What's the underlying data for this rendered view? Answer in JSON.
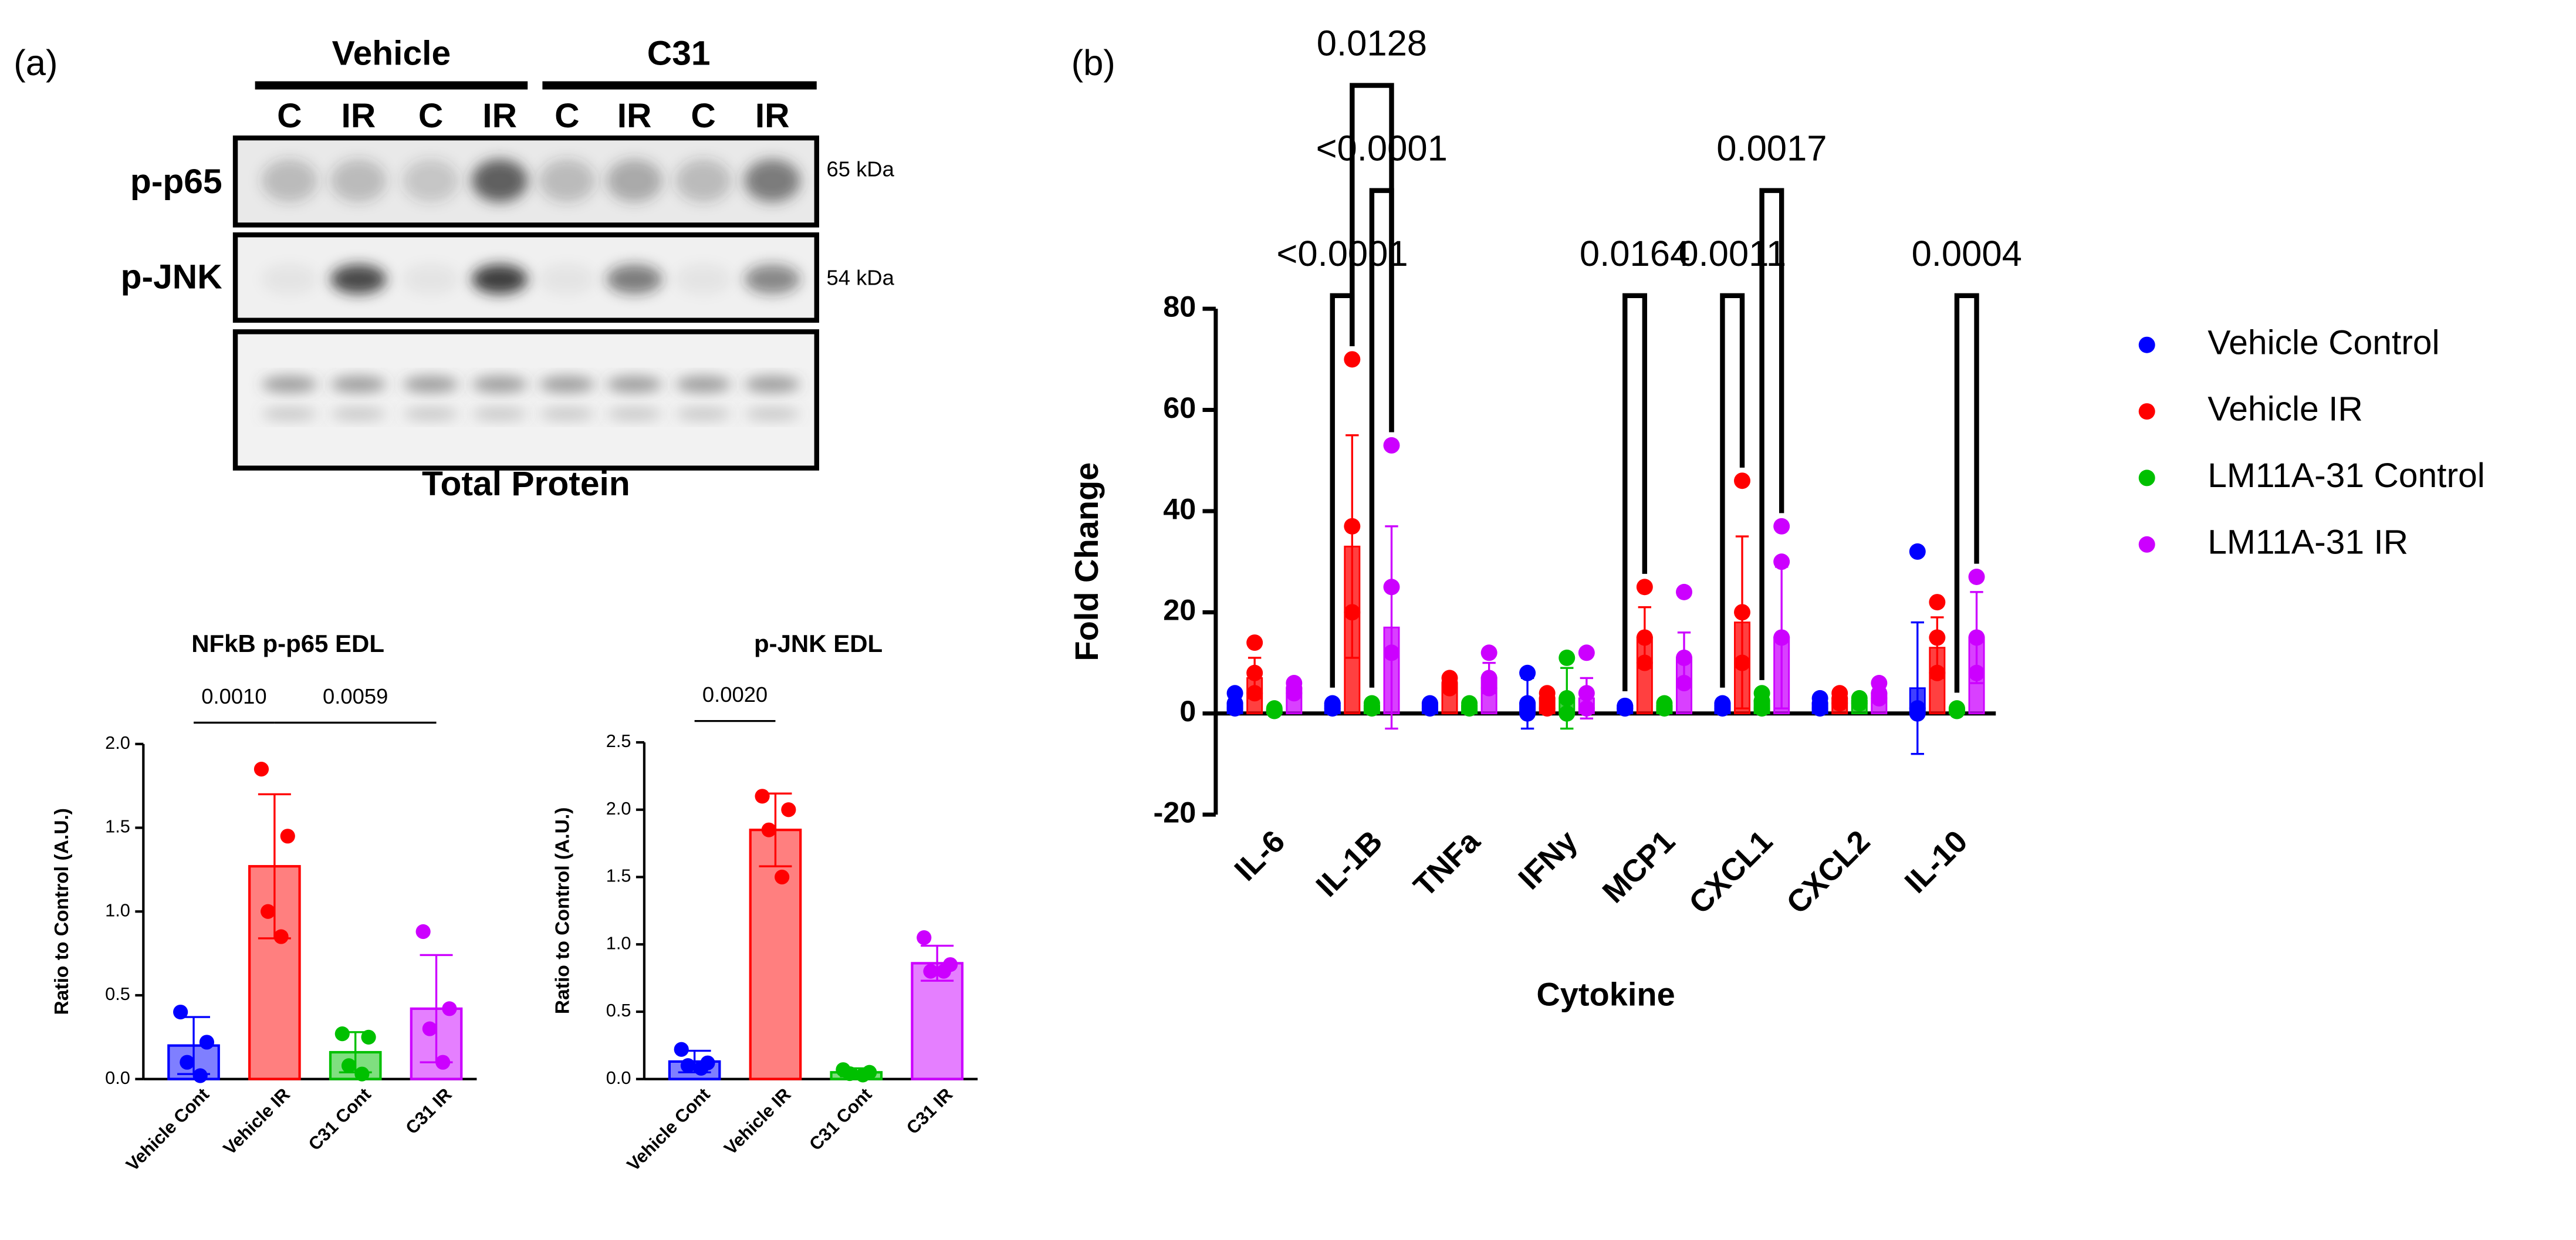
{
  "panel_labels": [
    "(a)",
    "(b)"
  ],
  "blot": {
    "groups": [
      "Vehicle",
      "C31"
    ],
    "lanes": [
      "C",
      "IR",
      "C",
      "IR",
      "C",
      "IR",
      "C",
      "IR"
    ],
    "rows": [
      {
        "label": "p-p65",
        "size": "65 kDa"
      },
      {
        "label": "p-JNK",
        "size": "54 kDa"
      }
    ],
    "total_label": "Total Protein"
  },
  "chart_data": [
    {
      "type": "bar",
      "title": "NFkB p-p65 EDL",
      "ylabel": "Ratio to Control (A.U.)",
      "categories": [
        "Vehicle Cont",
        "Vehicle IR",
        "C31 Cont",
        "C31 IR"
      ],
      "values": [
        0.2,
        1.27,
        0.16,
        0.42
      ],
      "errors": [
        0.17,
        0.43,
        0.12,
        0.32
      ],
      "points": [
        [
          0.4,
          0.22,
          0.1,
          0.02
        ],
        [
          1.85,
          1.45,
          1.0,
          0.85
        ],
        [
          0.27,
          0.25,
          0.08,
          0.03
        ],
        [
          0.88,
          0.42,
          0.3,
          0.1
        ]
      ],
      "colors": [
        "#0000ff",
        "#ff0000",
        "#00c000",
        "#cc00ff"
      ],
      "ylim": [
        0,
        2
      ],
      "yticks": [
        {
          "value": 0,
          "label": "0.0"
        },
        {
          "value": 0.5,
          "label": "0.5"
        },
        {
          "value": 1,
          "label": "1.0"
        },
        {
          "value": 1.5,
          "label": "1.5"
        },
        {
          "value": 2,
          "label": "2.0"
        }
      ],
      "comparisons": [
        {
          "pair": [
            0,
            1
          ],
          "label": "0.0010"
        },
        {
          "pair": [
            1,
            3
          ],
          "label": "0.0059"
        }
      ]
    },
    {
      "type": "bar",
      "title": "p-JNK EDL",
      "ylabel": "Ratio to Control (A.U.)",
      "categories": [
        "Vehicle Cont",
        "Vehicle IR",
        "C31 Cont",
        "C31 IR"
      ],
      "values": [
        0.13,
        1.85,
        0.05,
        0.86
      ],
      "errors": [
        0.08,
        0.27,
        0.03,
        0.13
      ],
      "points": [
        [
          0.22,
          0.12,
          0.1,
          0.08
        ],
        [
          2.1,
          2.0,
          1.85,
          1.5
        ],
        [
          0.07,
          0.05,
          0.04,
          0.03
        ],
        [
          1.05,
          0.85,
          0.8,
          0.8
        ]
      ],
      "colors": [
        "#0000ff",
        "#ff0000",
        "#00c000",
        "#cc00ff"
      ],
      "ylim": [
        0,
        2.5
      ],
      "yticks": [
        {
          "value": 0,
          "label": "0.0"
        },
        {
          "value": 0.5,
          "label": "0.5"
        },
        {
          "value": 1,
          "label": "1.0"
        },
        {
          "value": 1.5,
          "label": "1.5"
        },
        {
          "value": 2,
          "label": "2.0"
        },
        {
          "value": 2.5,
          "label": "2.5"
        }
      ],
      "comparisons": [
        {
          "pair": [
            0,
            1
          ],
          "label": "0.0020"
        }
      ]
    },
    {
      "type": "bar",
      "xlabel": "Cytokine",
      "ylabel": "Fold Change",
      "categories": [
        "IL-6",
        "IL-1B",
        "TNFa",
        "IFNy",
        "MCP1",
        "CXCL1",
        "CXCL2",
        "IL-10"
      ],
      "series": [
        {
          "name": "Vehicle Control",
          "color": "#0000ff",
          "values": [
            2,
            2,
            2,
            2,
            1.5,
            2,
            2,
            5
          ],
          "errors": [
            1.5,
            0.5,
            0.5,
            5,
            0.3,
            0.5,
            1,
            13
          ],
          "points": [
            [
              4,
              2,
              1
            ],
            [
              2,
              1.5,
              1
            ],
            [
              2,
              1.5,
              1
            ],
            [
              8,
              2,
              0
            ],
            [
              1.5,
              1,
              1
            ],
            [
              2,
              1.5,
              1
            ],
            [
              3,
              2,
              1
            ],
            [
              32,
              1,
              0
            ]
          ]
        },
        {
          "name": "Vehicle IR",
          "color": "#ff0000",
          "values": [
            7,
            33,
            6,
            3,
            15,
            18,
            3,
            13
          ],
          "errors": [
            4,
            22,
            1.5,
            1.5,
            6,
            17,
            1,
            6
          ],
          "points": [
            [
              14,
              8,
              4
            ],
            [
              70,
              37,
              20
            ],
            [
              7,
              6,
              5
            ],
            [
              4,
              3,
              1
            ],
            [
              25,
              15,
              10
            ],
            [
              46,
              20,
              10
            ],
            [
              4,
              3,
              2
            ],
            [
              22,
              15,
              8
            ]
          ]
        },
        {
          "name": "LM11A-31 Control",
          "color": "#00c000",
          "values": [
            0.8,
            1.5,
            1.5,
            3,
            1.5,
            2.5,
            2.5,
            1
          ],
          "errors": [
            0.5,
            1,
            0.5,
            6,
            0.5,
            1,
            1,
            0.5
          ],
          "points": [
            [
              1,
              0.5,
              0.5
            ],
            [
              2,
              1.5,
              1
            ],
            [
              2,
              1.5,
              1
            ],
            [
              11,
              3,
              0
            ],
            [
              2,
              1.5,
              1
            ],
            [
              4,
              2.5,
              1
            ],
            [
              3,
              2.5,
              2
            ],
            [
              1,
              0.5,
              0.5
            ]
          ]
        },
        {
          "name": "LM11A-31 IR",
          "color": "#cc00ff",
          "values": [
            5,
            17,
            7,
            3,
            11,
            15,
            4,
            15
          ],
          "errors": [
            1,
            20,
            3,
            4,
            5,
            14,
            1.5,
            9
          ],
          "points": [
            [
              6,
              5,
              4
            ],
            [
              53,
              25,
              12
            ],
            [
              12,
              7,
              5
            ],
            [
              12,
              4,
              1
            ],
            [
              24,
              11,
              6
            ],
            [
              37,
              30,
              15
            ],
            [
              6,
              4,
              3
            ],
            [
              27,
              15,
              8
            ]
          ]
        }
      ],
      "ylim": [
        -20,
        80
      ],
      "yticks": [
        -20,
        0,
        20,
        40,
        60,
        80
      ],
      "legend": "right",
      "comparisons": [
        {
          "category": 1,
          "pair": [
            0,
            1
          ],
          "label": "<0.0001"
        },
        {
          "category": 1,
          "pair": [
            2,
            3
          ],
          "label": "<0.0001"
        },
        {
          "category": 1,
          "pair": [
            1,
            3
          ],
          "label": "0.0128"
        },
        {
          "category": 4,
          "pair": [
            0,
            1
          ],
          "label": "0.0164"
        },
        {
          "category": 5,
          "pair": [
            0,
            1
          ],
          "label": "0.0011"
        },
        {
          "category": 5,
          "pair": [
            2,
            3
          ],
          "label": "0.0017"
        },
        {
          "category": 7,
          "pair": [
            2,
            3
          ],
          "label": "0.0004"
        }
      ]
    }
  ]
}
